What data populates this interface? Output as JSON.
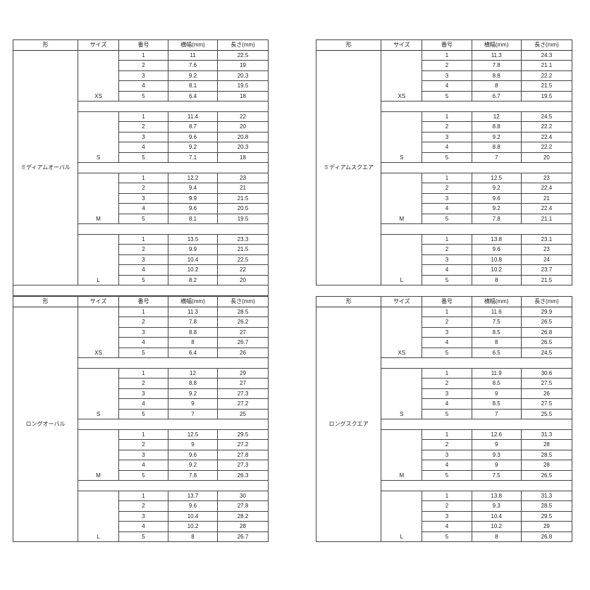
{
  "headers": [
    "形",
    "サイズ",
    "番号",
    "横幅(mm)",
    "長さ(mm)"
  ],
  "tables": [
    {
      "shape": "ミディアムオーバル",
      "groups": [
        {
          "size": "XS",
          "rows": [
            [
              "1",
              "11",
              "22.5"
            ],
            [
              "2",
              "7.6",
              "19"
            ],
            [
              "3",
              "9.2",
              "20.3"
            ],
            [
              "4",
              "8.1",
              "19.5"
            ],
            [
              "5",
              "6.4",
              "18"
            ]
          ]
        },
        {
          "size": "S",
          "rows": [
            [
              "1",
              "11.4",
              "22"
            ],
            [
              "2",
              "8.7",
              "20"
            ],
            [
              "3",
              "9.6",
              "20.8"
            ],
            [
              "4",
              "9.2",
              "20.3"
            ],
            [
              "5",
              "7.1",
              "18"
            ]
          ]
        },
        {
          "size": "M",
          "rows": [
            [
              "1",
              "12.2",
              "23"
            ],
            [
              "2",
              "9.4",
              "21"
            ],
            [
              "3",
              "9.9",
              "21.5"
            ],
            [
              "4",
              "9.6",
              "20.5"
            ],
            [
              "5",
              "8.1",
              "19.5"
            ]
          ]
        },
        {
          "size": "L",
          "rows": [
            [
              "1",
              "13.5",
              "23.3"
            ],
            [
              "2",
              "9.9",
              "21.5"
            ],
            [
              "3",
              "10.4",
              "22.5"
            ],
            [
              "4",
              "10.2",
              "22"
            ],
            [
              "5",
              "8.2",
              "20"
            ]
          ]
        }
      ]
    },
    {
      "shape": "ミディアムスクエア",
      "groups": [
        {
          "size": "XS",
          "rows": [
            [
              "1",
              "11.3",
              "24.3"
            ],
            [
              "2",
              "7.8",
              "21.1"
            ],
            [
              "3",
              "8.8",
              "22.2"
            ],
            [
              "4",
              "8",
              "21.5"
            ],
            [
              "5",
              "6.7",
              "19.5"
            ]
          ]
        },
        {
          "size": "S",
          "rows": [
            [
              "1",
              "12",
              "24.5"
            ],
            [
              "2",
              "8.8",
              "22.2"
            ],
            [
              "3",
              "9.2",
              "22.4"
            ],
            [
              "4",
              "8.8",
              "22.2"
            ],
            [
              "5",
              "7",
              "20"
            ]
          ]
        },
        {
          "size": "M",
          "rows": [
            [
              "1",
              "12.5",
              "23"
            ],
            [
              "2",
              "9.2",
              "22.4"
            ],
            [
              "3",
              "9.6",
              "21"
            ],
            [
              "4",
              "9.2",
              "22.4"
            ],
            [
              "5",
              "7.8",
              "21.1"
            ]
          ]
        },
        {
          "size": "L",
          "rows": [
            [
              "1",
              "13.8",
              "23.1"
            ],
            [
              "2",
              "9.6",
              "23"
            ],
            [
              "3",
              "10.8",
              "24"
            ],
            [
              "4",
              "10.2",
              "23.7"
            ],
            [
              "5",
              "8",
              "21.5"
            ]
          ]
        }
      ]
    },
    {
      "shape": "ロングオーバル",
      "groups": [
        {
          "size": "XS",
          "rows": [
            [
              "1",
              "11.3",
              "28.5"
            ],
            [
              "2",
              "7.8",
              "26.2"
            ],
            [
              "3",
              "8.8",
              "27"
            ],
            [
              "4",
              "8",
              "26.7"
            ],
            [
              "5",
              "6.4",
              "26"
            ]
          ]
        },
        {
          "size": "S",
          "rows": [
            [
              "1",
              "12",
              "29"
            ],
            [
              "2",
              "8.8",
              "27"
            ],
            [
              "3",
              "9.2",
              "27.3"
            ],
            [
              "4",
              "9",
              "27.2"
            ],
            [
              "5",
              "7",
              "25"
            ]
          ]
        },
        {
          "size": "M",
          "rows": [
            [
              "1",
              "12.5",
              "29.5"
            ],
            [
              "2",
              "9",
              "27.2"
            ],
            [
              "3",
              "9.6",
              "27.8"
            ],
            [
              "4",
              "9.2",
              "27.3"
            ],
            [
              "5",
              "7.8",
              "26.3"
            ]
          ]
        },
        {
          "size": "L",
          "rows": [
            [
              "1",
              "13.7",
              "30"
            ],
            [
              "2",
              "9.6",
              "27.8"
            ],
            [
              "3",
              "10.4",
              "28.2"
            ],
            [
              "4",
              "10.2",
              "28"
            ],
            [
              "5",
              "8",
              "26.7"
            ]
          ]
        }
      ]
    },
    {
      "shape": "ロングスクエア",
      "groups": [
        {
          "size": "XS",
          "rows": [
            [
              "1",
              "11.6",
              "29.9"
            ],
            [
              "2",
              "7.5",
              "26.5"
            ],
            [
              "3",
              "8.5",
              "26.8"
            ],
            [
              "4",
              "8",
              "26.5"
            ],
            [
              "5",
              "6.5",
              "24.5"
            ]
          ]
        },
        {
          "size": "S",
          "rows": [
            [
              "1",
              "11.9",
              "30.6"
            ],
            [
              "2",
              "8.5",
              "27.5"
            ],
            [
              "3",
              "9",
              "26"
            ],
            [
              "4",
              "8.5",
              "27.5"
            ],
            [
              "5",
              "7",
              "25.5"
            ]
          ]
        },
        {
          "size": "M",
          "rows": [
            [
              "1",
              "12.6",
              "31.3"
            ],
            [
              "2",
              "9",
              "28"
            ],
            [
              "3",
              "9.3",
              "28.5"
            ],
            [
              "4",
              "9",
              "28"
            ],
            [
              "5",
              "7.5",
              "26.5"
            ]
          ]
        },
        {
          "size": "L",
          "rows": [
            [
              "1",
              "13.8",
              "31.3"
            ],
            [
              "2",
              "9.3",
              "28.5"
            ],
            [
              "3",
              "10.4",
              "29.5"
            ],
            [
              "4",
              "10.2",
              "29"
            ],
            [
              "5",
              "8",
              "26.8"
            ]
          ]
        }
      ]
    }
  ]
}
